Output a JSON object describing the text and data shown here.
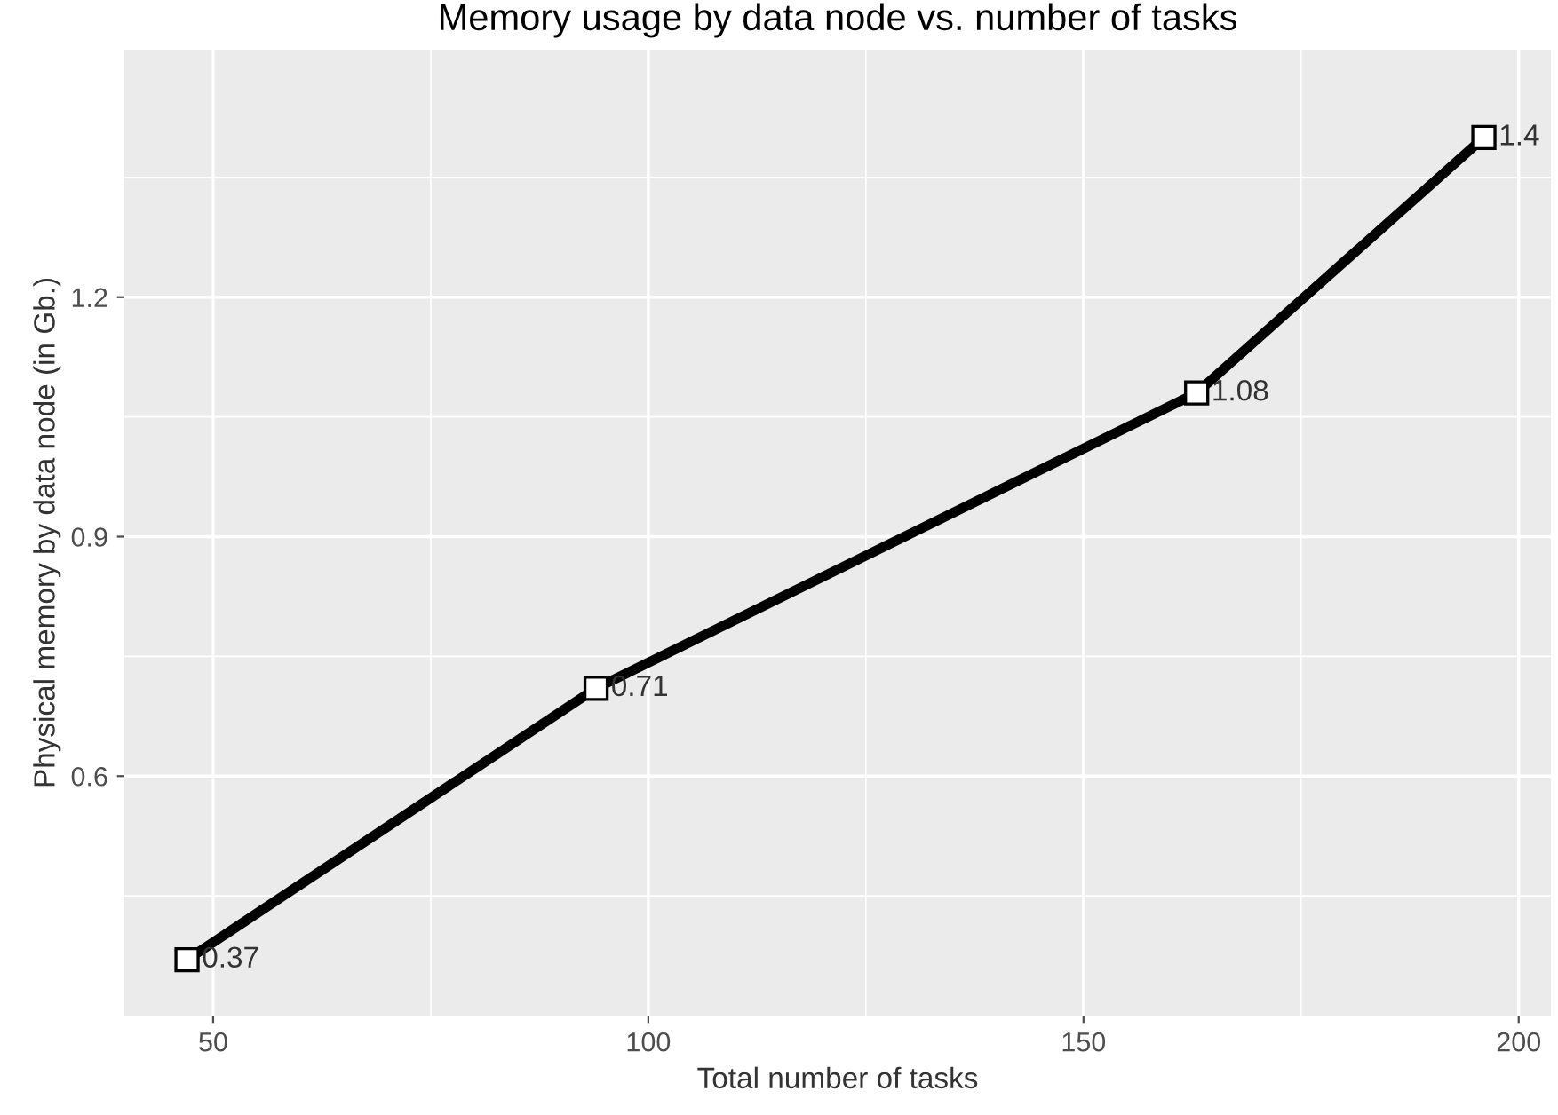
{
  "chart_data": {
    "type": "line",
    "title": "Memory usage by data node vs. number of tasks",
    "xlabel": "Total number of tasks",
    "ylabel": "Physical memory by data node (in Gb.)",
    "x": [
      47,
      94,
      163,
      196
    ],
    "series": [
      {
        "color": "#000000",
        "values": [
          0.37,
          0.71,
          1.08,
          1.4
        ]
      }
    ],
    "xlim": [
      39.8,
      203.7
    ],
    "ylim": [
      0.3,
      1.51
    ],
    "xticks": [
      50,
      100,
      150,
      200
    ],
    "yticks": [
      0.6,
      0.9,
      1.2
    ],
    "grid": true,
    "marker": "square",
    "line_style": "solid",
    "data_labels": true
  }
}
